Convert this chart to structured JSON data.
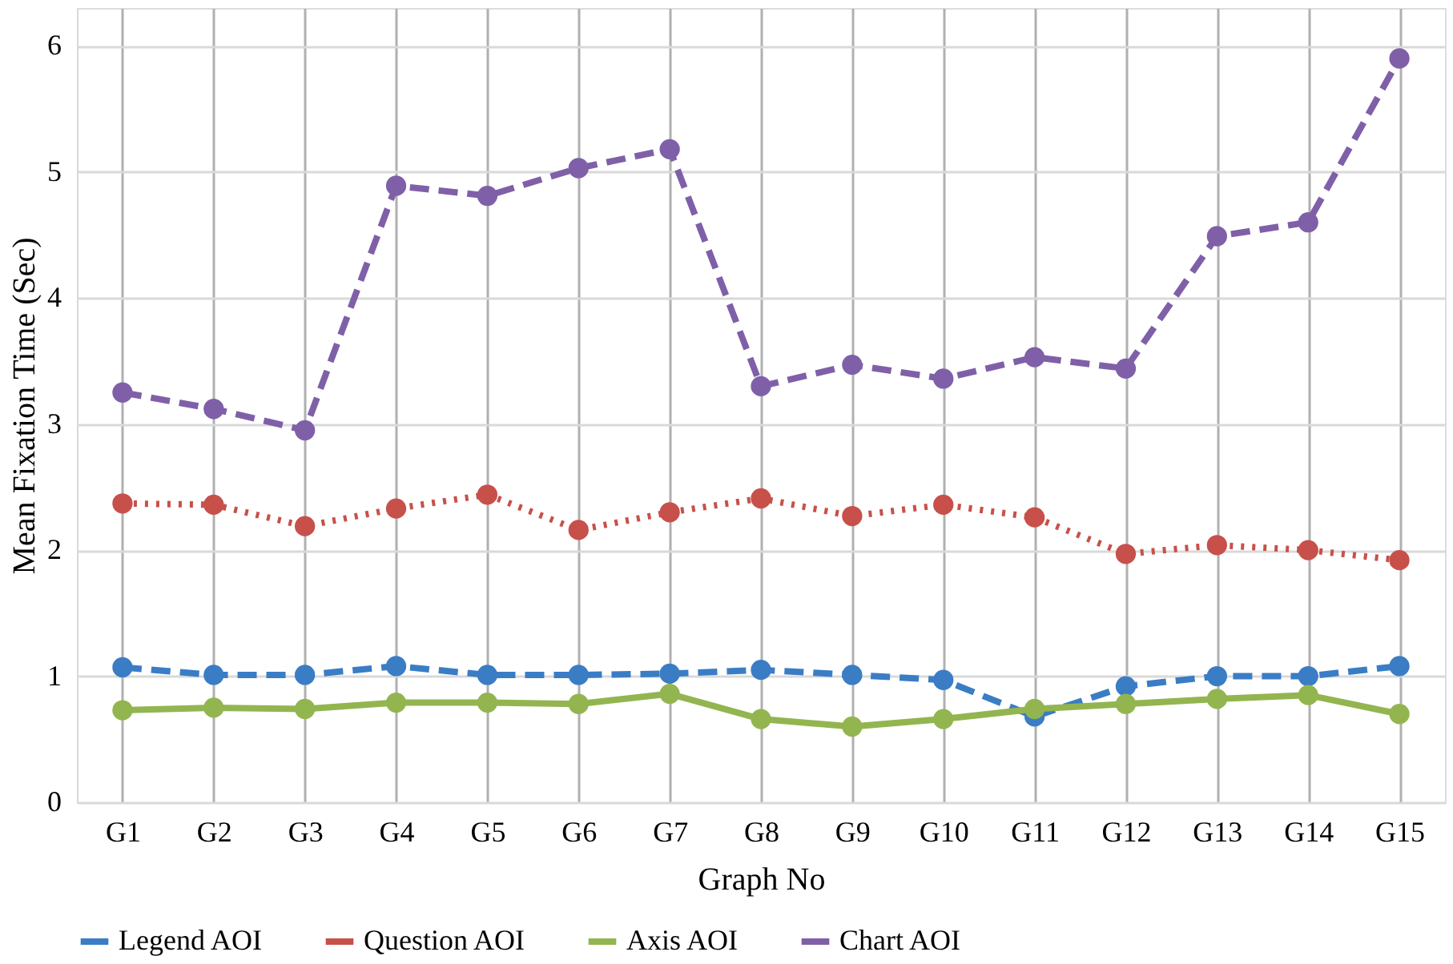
{
  "chart_data": {
    "type": "line",
    "xlabel": "Graph No",
    "ylabel": "Mean Fixation Time (Sec)",
    "categories": [
      "G1",
      "G2",
      "G3",
      "G4",
      "G5",
      "G6",
      "G7",
      "G8",
      "G9",
      "G10",
      "G11",
      "G12",
      "G13",
      "G14",
      "G15"
    ],
    "series": [
      {
        "name": "Legend AOI",
        "color": "#3a7dc5",
        "line_style": "dashed",
        "values": [
          1.07,
          1.01,
          1.01,
          1.08,
          1.01,
          1.01,
          1.02,
          1.05,
          1.01,
          0.97,
          0.68,
          0.92,
          1.0,
          1.0,
          1.08
        ]
      },
      {
        "name": "Question AOI",
        "color": "#c8504a",
        "line_style": "dotted",
        "values": [
          2.37,
          2.36,
          2.19,
          2.33,
          2.44,
          2.16,
          2.3,
          2.41,
          2.27,
          2.36,
          2.26,
          1.97,
          2.04,
          2.0,
          1.92
        ]
      },
      {
        "name": "Axis AOI",
        "color": "#93b550",
        "line_style": "solid",
        "values": [
          0.73,
          0.75,
          0.74,
          0.79,
          0.79,
          0.78,
          0.86,
          0.66,
          0.6,
          0.66,
          0.74,
          0.78,
          0.82,
          0.85,
          0.7
        ]
      },
      {
        "name": "Chart AOI",
        "color": "#7f60a8",
        "line_style": "dashed",
        "values": [
          3.25,
          3.12,
          2.95,
          4.89,
          4.81,
          5.03,
          5.18,
          3.3,
          3.47,
          3.36,
          3.53,
          3.44,
          4.49,
          4.6,
          5.9
        ]
      }
    ],
    "ylim": [
      0,
      6.3
    ],
    "yticks": [
      0,
      1,
      2,
      3,
      4,
      5,
      6
    ],
    "grid": true,
    "legend": "bottom",
    "marker": "circle"
  }
}
